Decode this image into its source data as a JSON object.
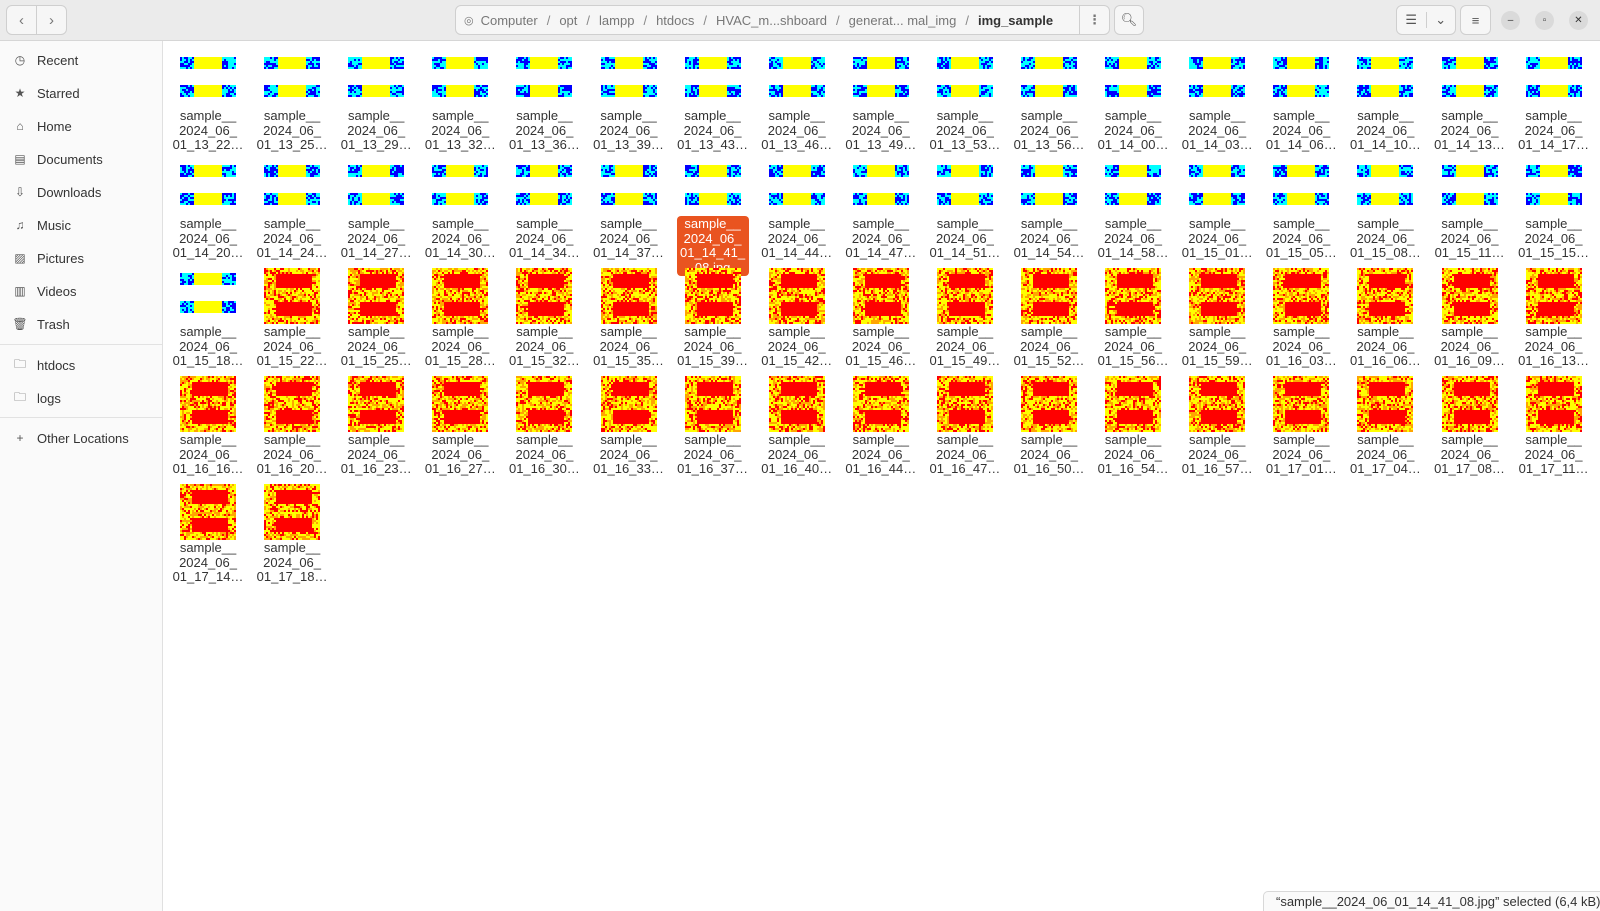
{
  "header": {
    "breadcrumb": [
      "Computer",
      "opt",
      "lampp",
      "htdocs",
      "HVAC_m...shboard",
      "generat... mal_img",
      "img_sample"
    ],
    "icons": {
      "back": "chevron-left-icon",
      "forward": "chevron-right-icon",
      "menu": "vertical-dots-icon",
      "search": "search-icon",
      "view": "list-view-icon",
      "view_dropdown": "chevron-down-icon",
      "hamburger": "hamburger-icon",
      "minimize": "minimize-icon",
      "maximize": "restore-icon",
      "close": "close-icon"
    }
  },
  "sidebar": {
    "items": [
      {
        "label": "Recent",
        "icon": "clock-icon"
      },
      {
        "label": "Starred",
        "icon": "star-icon"
      },
      {
        "label": "Home",
        "icon": "home-icon"
      },
      {
        "label": "Documents",
        "icon": "document-icon"
      },
      {
        "label": "Downloads",
        "icon": "download-icon"
      },
      {
        "label": "Music",
        "icon": "music-icon"
      },
      {
        "label": "Pictures",
        "icon": "picture-icon"
      },
      {
        "label": "Videos",
        "icon": "video-icon"
      },
      {
        "label": "Trash",
        "icon": "trash-icon"
      }
    ],
    "bookmarks": [
      {
        "label": "htdocs",
        "icon": "folder-icon"
      },
      {
        "label": "logs",
        "icon": "folder-icon"
      }
    ],
    "other": {
      "label": "Other Locations",
      "icon": "plus-icon"
    }
  },
  "files": {
    "prefix": "sample__\n2024_06_\n01_",
    "times": [
      "13_22",
      "13_25",
      "13_29",
      "13_32",
      "13_36",
      "13_39",
      "13_43",
      "13_46",
      "13_49",
      "13_53",
      "13_56",
      "14_00",
      "14_03",
      "14_06",
      "14_10",
      "14_13",
      "14_17",
      "14_20",
      "14_24",
      "14_27",
      "14_30",
      "14_34",
      "14_37",
      "14_41",
      "14_44",
      "14_47",
      "14_51",
      "14_54",
      "14_58",
      "15_01",
      "15_05",
      "15_08",
      "15_11",
      "15_15",
      "15_18",
      "15_22",
      "15_25",
      "15_28",
      "15_32",
      "15_35",
      "15_39",
      "15_42",
      "15_46",
      "15_49",
      "15_52",
      "15_56",
      "15_59",
      "16_03",
      "16_06",
      "16_09",
      "16_13",
      "16_16",
      "16_20",
      "16_23",
      "16_27",
      "16_30",
      "16_33",
      "16_37",
      "16_40",
      "16_44",
      "16_47",
      "16_50",
      "16_54",
      "16_57",
      "17_01",
      "17_04",
      "17_08",
      "17_11",
      "17_14",
      "17_18"
    ],
    "blue_count": 35,
    "selected_index": 23,
    "selected_label": "sample__\n2024_06_\n01_14_41_\n08.jpg",
    "colors": {
      "blue": "#0000ff",
      "cyan": "#00ffff",
      "yellow": "#ffff00",
      "red": "#ff0000",
      "orange": "#ffa500",
      "accent": "#e95420"
    }
  },
  "status": "“sample__2024_06_01_14_41_08.jpg” selected  (6,4 kB)"
}
